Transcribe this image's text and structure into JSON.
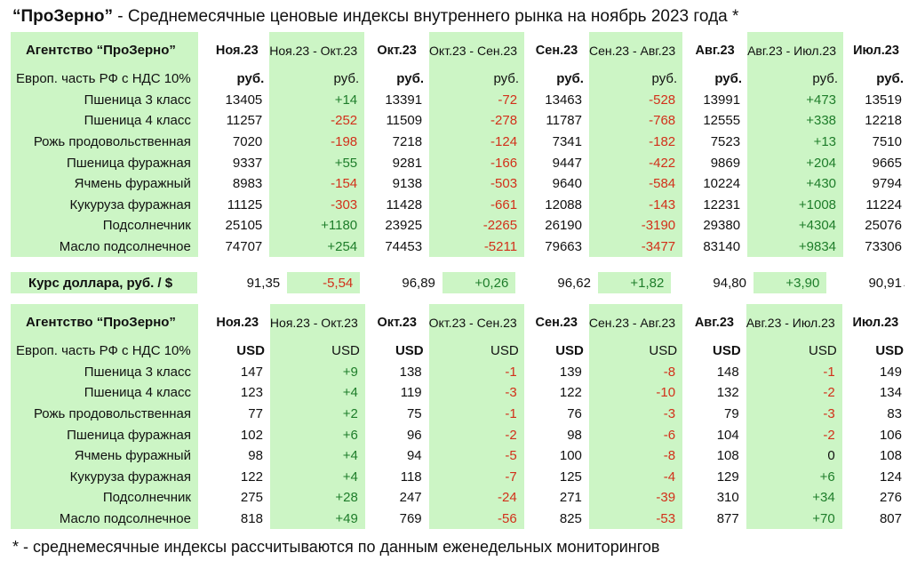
{
  "title": {
    "brand": "“ПроЗерно”",
    "text": " - Среднемесячные ценовые индексы внутреннего рынка на ноябрь 2023 года *"
  },
  "footnote": "* - среднемесячные индексы рассчитываются по данным еженедельных мониторингов",
  "header": {
    "agency": "Агентство “ПроЗерно”",
    "columns": [
      "Ноя.23",
      "Ноя.23 - Окт.23",
      "Окт.23",
      "Окт.23 - Сен.23",
      "Сен.23",
      "Сен.23 - Авг.23",
      "Авг.23",
      "Авг.23 - Июл.23",
      "Июл.23"
    ]
  },
  "rub_table": {
    "unit_label": "Европ. часть РФ с НДС 10%",
    "units": [
      "руб.",
      "руб.",
      "руб.",
      "руб.",
      "руб.",
      "руб.",
      "руб.",
      "руб.",
      "руб."
    ],
    "rows": [
      {
        "name": "Пшеница  3 класс",
        "values": [
          "13405",
          "+14",
          "13391",
          "-72",
          "13463",
          "-528",
          "13991",
          "+473",
          "13519"
        ]
      },
      {
        "name": "Пшеница  4 класс",
        "values": [
          "11257",
          "-252",
          "11509",
          "-278",
          "11787",
          "-768",
          "12555",
          "+338",
          "12218"
        ]
      },
      {
        "name": "Рожь продовольственная",
        "values": [
          "7020",
          "-198",
          "7218",
          "-124",
          "7341",
          "-182",
          "7523",
          "+13",
          "7510"
        ]
      },
      {
        "name": "Пшеница  фуражная",
        "values": [
          "9337",
          "+55",
          "9281",
          "-166",
          "9447",
          "-422",
          "9869",
          "+204",
          "9665"
        ]
      },
      {
        "name": "Ячмень фуражный",
        "values": [
          "8983",
          "-154",
          "9138",
          "-503",
          "9640",
          "-584",
          "10224",
          "+430",
          "9794"
        ]
      },
      {
        "name": "Кукуруза фуражная",
        "values": [
          "11125",
          "-303",
          "11428",
          "-661",
          "12088",
          "-143",
          "12231",
          "+1008",
          "11224"
        ]
      },
      {
        "name": "Подсолнечник",
        "values": [
          "25105",
          "+1180",
          "23925",
          "-2265",
          "26190",
          "-3190",
          "29380",
          "+4304",
          "25076"
        ]
      },
      {
        "name": "Масло подсолнечное",
        "values": [
          "74707",
          "+254",
          "74453",
          "-5211",
          "79663",
          "-3477",
          "83140",
          "+9834",
          "73306"
        ]
      }
    ]
  },
  "fx": {
    "label": "Курс доллара,  руб. / $",
    "values": [
      "91,35",
      "-5,54",
      "96,89",
      "+0,26",
      "96,62",
      "+1,82",
      "94,80",
      "+3,90",
      "90,91"
    ],
    "trailing_mark": "."
  },
  "usd_table": {
    "unit_label": "Европ. часть РФ с НДС 10%",
    "units": [
      "USD",
      "USD",
      "USD",
      "USD",
      "USD",
      "USD",
      "USD",
      "USD",
      "USD"
    ],
    "rows": [
      {
        "name": "Пшеница  3 класс",
        "values": [
          "147",
          "+9",
          "138",
          "-1",
          "139",
          "-8",
          "148",
          "-1",
          "149"
        ]
      },
      {
        "name": "Пшеница  4 класс",
        "values": [
          "123",
          "+4",
          "119",
          "-3",
          "122",
          "-10",
          "132",
          "-2",
          "134"
        ]
      },
      {
        "name": "Рожь продовольственная",
        "values": [
          "77",
          "+2",
          "75",
          "-1",
          "76",
          "-3",
          "79",
          "-3",
          "83"
        ]
      },
      {
        "name": "Пшеница  фуражная",
        "values": [
          "102",
          "+6",
          "96",
          "-2",
          "98",
          "-6",
          "104",
          "-2",
          "106"
        ]
      },
      {
        "name": "Ячмень фуражный",
        "values": [
          "98",
          "+4",
          "94",
          "-5",
          "100",
          "-8",
          "108",
          "0",
          "108"
        ]
      },
      {
        "name": "Кукуруза фуражная",
        "values": [
          "122",
          "+4",
          "118",
          "-7",
          "125",
          "-4",
          "129",
          "+6",
          "124"
        ]
      },
      {
        "name": "Подсолнечник",
        "values": [
          "275",
          "+28",
          "247",
          "-24",
          "271",
          "-39",
          "310",
          "+34",
          "276"
        ]
      },
      {
        "name": "Масло подсолнечное",
        "values": [
          "818",
          "+49",
          "769",
          "-56",
          "825",
          "-53",
          "877",
          "+70",
          "807"
        ]
      }
    ]
  },
  "colors": {
    "green_fill": "#ccf5c5",
    "positive": "#1e7d2a",
    "negative": "#d2301a"
  }
}
